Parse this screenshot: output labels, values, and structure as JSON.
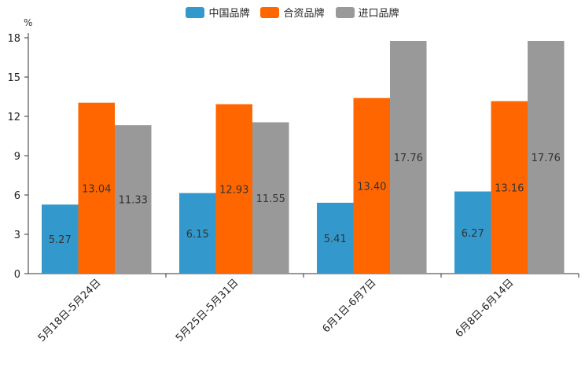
{
  "chart_data": {
    "type": "bar",
    "unit": "%",
    "categories": [
      "5月18日-5月24日",
      "5月25日-5月31日",
      "6月1日-6月7日",
      "6月8日-6月14日"
    ],
    "series": [
      {
        "name": "中国品牌",
        "color": "#3399cc",
        "values": [
          5.27,
          6.15,
          5.41,
          6.27
        ],
        "labels": [
          "5.27",
          "6.15",
          "5.41",
          "6.27"
        ]
      },
      {
        "name": "合资品牌",
        "color": "#ff6600",
        "values": [
          13.04,
          12.93,
          13.4,
          13.16
        ],
        "labels": [
          "13.04",
          "12.93",
          "13.40",
          "13.16"
        ]
      },
      {
        "name": "进口品牌",
        "color": "#999999",
        "values": [
          11.33,
          11.55,
          17.76,
          17.76
        ],
        "labels": [
          "11.33",
          "11.55",
          "17.76",
          "17.76"
        ]
      }
    ],
    "yticks": [
      "0",
      "3",
      "6",
      "9",
      "12",
      "15",
      "18"
    ],
    "ylim": [
      0,
      18
    ],
    "legend_position": "top-center"
  }
}
